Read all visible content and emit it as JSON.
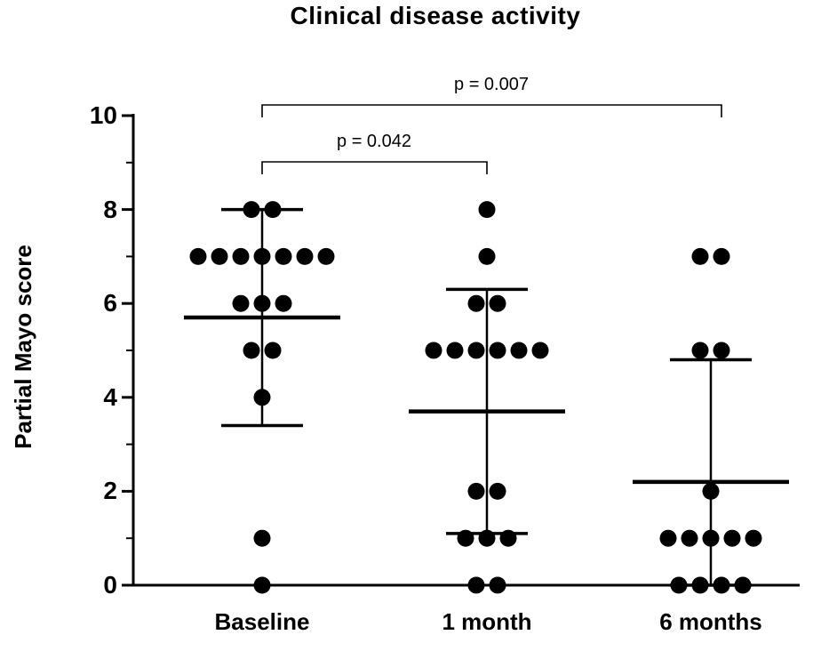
{
  "chart_data": {
    "type": "scatter",
    "title": "Clinical disease activity",
    "ylabel": "Partial Mayo score",
    "ylim": [
      0,
      10
    ],
    "yticks": [
      0,
      2,
      4,
      6,
      8,
      10
    ],
    "categories": [
      "Baseline",
      "1 month",
      "6 months"
    ],
    "series": [
      {
        "name": "Baseline",
        "values": [
          8,
          8,
          7,
          7,
          7,
          7,
          7,
          7,
          7,
          6,
          6,
          6,
          5,
          5,
          4,
          1,
          0
        ],
        "mean": 5.7,
        "err_low": 3.4,
        "err_high": 8.0
      },
      {
        "name": "1 month",
        "values": [
          8,
          7,
          6,
          6,
          5,
          5,
          5,
          5,
          5,
          5,
          2,
          2,
          1,
          1,
          1,
          0,
          0
        ],
        "mean": 3.7,
        "err_low": 1.1,
        "err_high": 6.3
      },
      {
        "name": "6 months",
        "values": [
          7,
          7,
          5,
          5,
          2,
          1,
          1,
          1,
          1,
          1,
          0,
          0,
          0,
          0
        ],
        "mean": 2.2,
        "err_low": 0,
        "err_high": 4.8
      }
    ],
    "annotations": [
      {
        "label": "p = 0.007",
        "from": 0,
        "to": 2
      },
      {
        "label": "p = 0.042",
        "from": 0,
        "to": 1
      }
    ],
    "point_color": "#000000",
    "axis_color": "#000000",
    "legend": "none",
    "grid": "off"
  }
}
